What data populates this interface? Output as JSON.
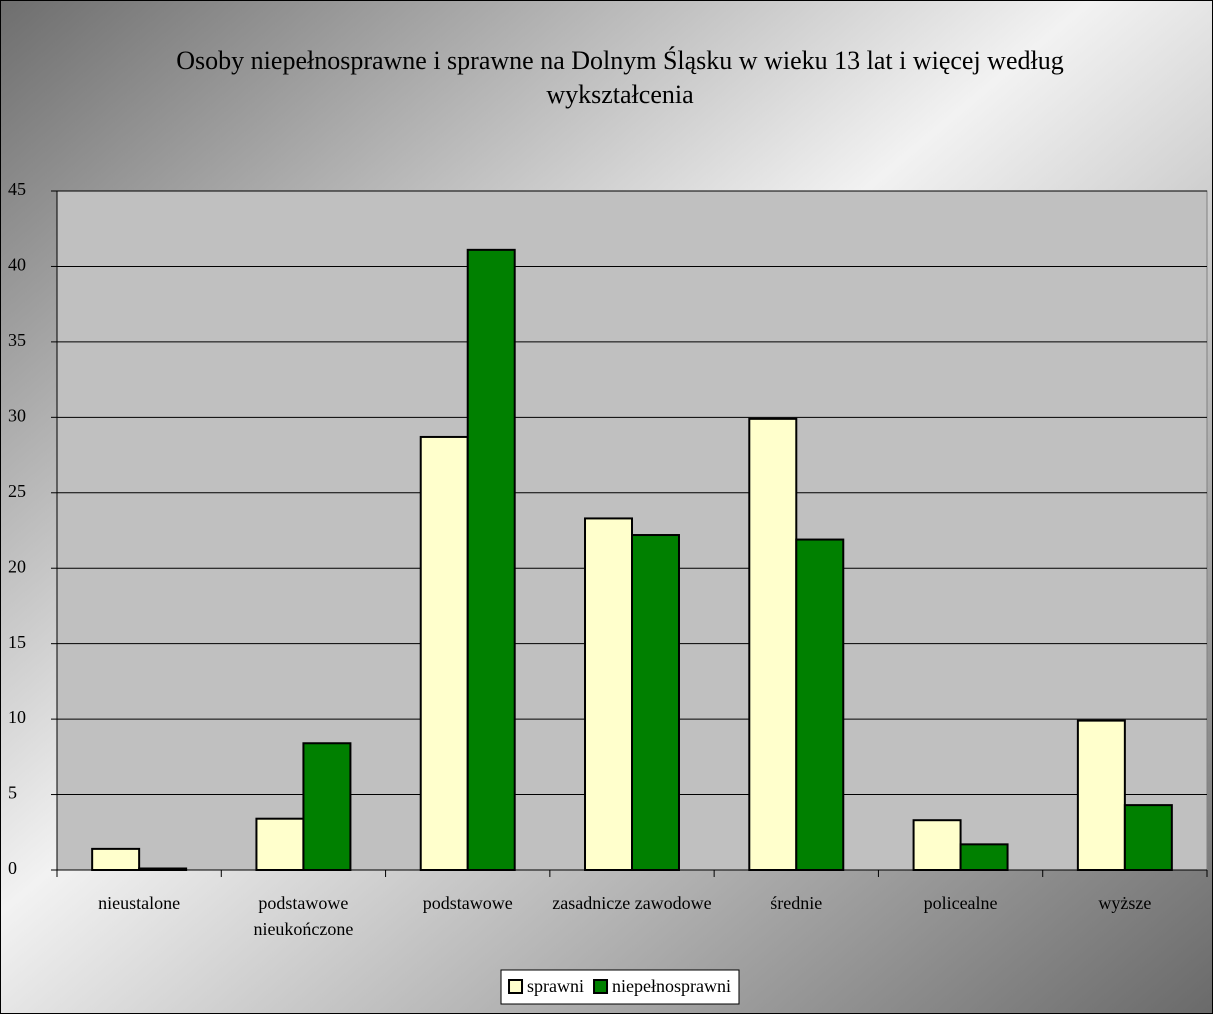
{
  "chart_data": {
    "type": "bar",
    "title": "Osoby niepełnosprawne i sprawne na Dolnym Śląsku w wieku 13 lat i więcej według wykształcenia",
    "categories": [
      "nieustalone",
      "podstawowe nieukończone",
      "podstawowe",
      "zasadnicze zawodowe",
      "średnie",
      "policealne",
      "wyższe"
    ],
    "series": [
      {
        "name": "sprawni",
        "color": "#ffffcc",
        "values": [
          1.4,
          3.4,
          28.7,
          23.3,
          29.9,
          3.3,
          9.9
        ]
      },
      {
        "name": "niepełnosprawni",
        "color": "#008000",
        "values": [
          0.1,
          8.4,
          41.1,
          22.2,
          21.9,
          1.7,
          4.3
        ]
      }
    ],
    "ylim": [
      0,
      45
    ],
    "yticks": [
      0,
      5,
      10,
      15,
      20,
      25,
      30,
      35,
      40,
      45
    ],
    "grid": true,
    "legend": "bottom"
  }
}
